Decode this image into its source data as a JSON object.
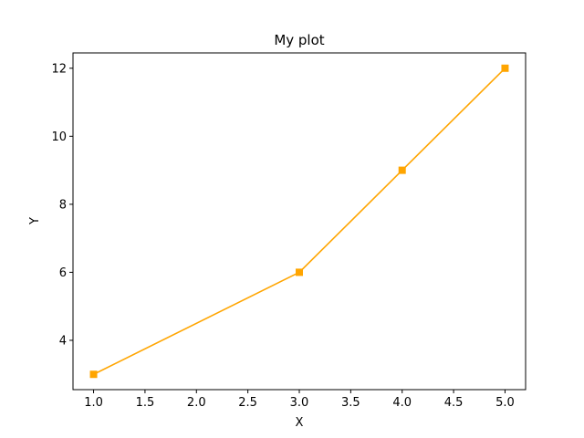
{
  "chart_data": {
    "type": "line",
    "title": "My plot",
    "xlabel": "X",
    "ylabel": "Y",
    "xlim": [
      0.8,
      5.2
    ],
    "ylim": [
      2.55,
      12.45
    ],
    "xticks": [
      1.0,
      1.5,
      2.0,
      2.5,
      3.0,
      3.5,
      4.0,
      4.5,
      5.0
    ],
    "xtick_labels": [
      "1.0",
      "1.5",
      "2.0",
      "2.5",
      "3.0",
      "3.5",
      "4.0",
      "4.5",
      "5.0"
    ],
    "yticks": [
      4,
      6,
      8,
      10,
      12
    ],
    "ytick_labels": [
      "4",
      "6",
      "8",
      "10",
      "12"
    ],
    "grid": false,
    "legend": "none",
    "series": [
      {
        "color": "#ffa500",
        "marker": "square",
        "x": [
          1,
          3,
          4,
          5
        ],
        "y": [
          3,
          6,
          9,
          12
        ]
      }
    ]
  }
}
